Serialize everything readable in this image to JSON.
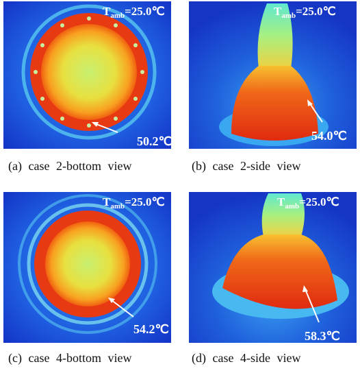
{
  "panels": [
    {
      "caption": "(a) case 2-bottom view",
      "ambient": {
        "symbol": "T",
        "subscript": "amb",
        "value": "=25.0℃"
      },
      "max_temperature": "50.2℃"
    },
    {
      "caption": "(b) case 2-side view",
      "ambient": {
        "symbol": "T",
        "subscript": "amb",
        "value": "=25.0℃"
      },
      "max_temperature": "54.0℃"
    },
    {
      "caption": "(c) case 4-bottom view",
      "ambient": {
        "symbol": "T",
        "subscript": "amb",
        "value": "=25.0℃"
      },
      "max_temperature": "54.2℃"
    },
    {
      "caption": "(d) case 4-side view",
      "ambient": {
        "symbol": "T",
        "subscript": "amb",
        "value": "=25.0℃"
      },
      "max_temperature": "58.3℃"
    }
  ]
}
